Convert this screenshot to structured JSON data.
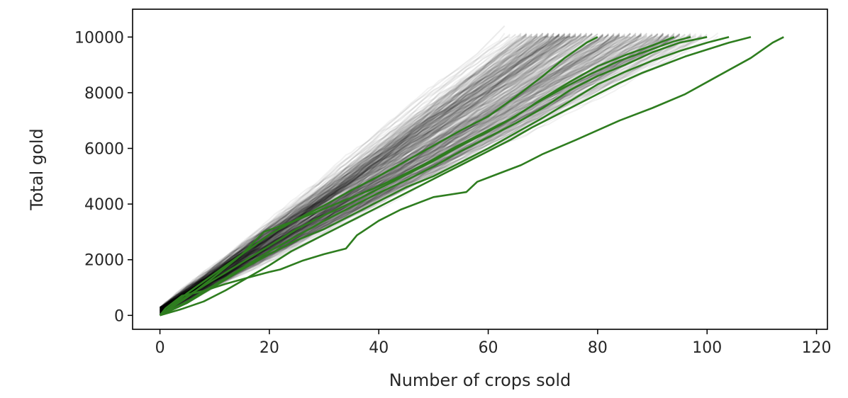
{
  "chart_data": {
    "type": "line",
    "xlabel": "Number of crops sold",
    "ylabel": "Total gold",
    "xlim": [
      -5,
      122
    ],
    "ylim": [
      -500,
      11000
    ],
    "xticks": [
      0,
      20,
      40,
      60,
      80,
      100,
      120
    ],
    "yticks": [
      0,
      2000,
      4000,
      6000,
      8000,
      10000
    ],
    "grid": false,
    "legend": "none",
    "background_series": {
      "color": "#000000",
      "description_count": 400,
      "typical_slope_gold_per_crop": 123,
      "end_value": 10000,
      "end_x_range": [
        72,
        116
      ]
    },
    "highlight_color": "#2e7d1f",
    "series": [
      {
        "x": [
          0,
          1,
          4,
          8,
          12,
          16,
          20,
          22,
          26,
          30,
          34,
          36,
          40,
          44,
          50,
          56,
          58,
          62,
          66,
          70,
          76,
          84,
          90,
          96,
          102,
          108,
          112,
          114
        ],
        "y": [
          0,
          250,
          700,
          880,
          1130,
          1350,
          1560,
          1650,
          1960,
          2200,
          2400,
          2880,
          3400,
          3800,
          4250,
          4430,
          4800,
          5100,
          5400,
          5800,
          6300,
          7000,
          7450,
          7950,
          8600,
          9250,
          9800,
          10000
        ]
      },
      {
        "x": [
          0,
          4,
          8,
          12,
          16,
          20,
          24,
          28,
          32,
          36,
          40,
          44,
          48,
          52,
          56,
          60,
          64,
          68,
          72,
          76,
          80,
          84,
          88,
          92,
          96,
          100,
          104,
          108
        ],
        "y": [
          0,
          230,
          500,
          900,
          1350,
          1800,
          2300,
          2700,
          3100,
          3500,
          3900,
          4300,
          4700,
          5100,
          5500,
          5900,
          6300,
          6750,
          7150,
          7550,
          7950,
          8350,
          8700,
          9000,
          9300,
          9550,
          9800,
          10000
        ]
      },
      {
        "x": [
          0,
          5,
          10,
          15,
          20,
          25,
          30,
          35,
          40,
          45,
          50,
          55,
          60,
          65,
          70,
          75,
          80,
          85,
          90,
          95,
          100,
          104
        ],
        "y": [
          0,
          450,
          1050,
          1650,
          2200,
          2700,
          3100,
          3600,
          4100,
          4600,
          5000,
          5500,
          6000,
          6550,
          7100,
          7700,
          8300,
          8750,
          9150,
          9500,
          9800,
          10000
        ]
      },
      {
        "x": [
          0,
          5,
          10,
          15,
          20,
          25,
          30,
          35,
          40,
          45,
          50,
          55,
          60,
          65,
          70,
          75,
          80,
          85,
          90,
          95,
          100
        ],
        "y": [
          0,
          500,
          1100,
          1700,
          2300,
          2850,
          3400,
          3900,
          4400,
          4850,
          5350,
          5900,
          6400,
          6900,
          7450,
          8100,
          8600,
          9000,
          9450,
          9800,
          10000
        ]
      },
      {
        "x": [
          0,
          5,
          10,
          15,
          20,
          25,
          30,
          35,
          40,
          45,
          50,
          55,
          60,
          65,
          70,
          75,
          80,
          85,
          90,
          94
        ],
        "y": [
          0,
          700,
          1300,
          1900,
          2500,
          3100,
          3600,
          4050,
          4550,
          5050,
          5550,
          6100,
          6600,
          7150,
          7800,
          8400,
          8950,
          9350,
          9700,
          10000
        ]
      },
      {
        "x": [
          0,
          5,
          10,
          15,
          19,
          24,
          29,
          34,
          39,
          44,
          49,
          54,
          59,
          64,
          69,
          74,
          79,
          84,
          89,
          94,
          97
        ],
        "y": [
          0,
          650,
          1400,
          2200,
          3000,
          3350,
          3750,
          4150,
          4550,
          5000,
          5500,
          6050,
          6550,
          7050,
          7650,
          8200,
          8700,
          9150,
          9500,
          9850,
          10000
        ]
      },
      {
        "x": [
          0,
          5,
          10,
          15,
          20,
          25,
          30,
          35,
          40,
          45,
          50,
          55,
          60,
          65,
          70,
          74,
          78,
          80
        ],
        "y": [
          0,
          800,
          1500,
          2200,
          2900,
          3450,
          3950,
          4500,
          5000,
          5550,
          6100,
          6650,
          7150,
          7850,
          8600,
          9250,
          9800,
          10000
        ]
      }
    ]
  }
}
